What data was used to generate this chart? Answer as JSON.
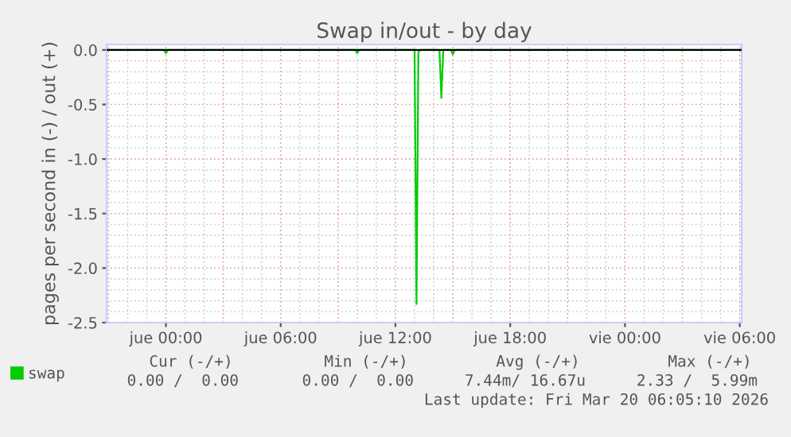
{
  "chart_data": {
    "type": "line",
    "title": "Swap in/out - by day",
    "ylabel": "pages per second in (-) / out (+)",
    "x": [
      "2026-03-18T20:54",
      "2026-03-18T23:54",
      "2026-03-19T00:00",
      "2026-03-19T00:06",
      "2026-03-19T09:54",
      "2026-03-19T10:00",
      "2026-03-19T10:06",
      "2026-03-19T13:00",
      "2026-03-19T13:06",
      "2026-03-19T13:12",
      "2026-03-19T13:18",
      "2026-03-19T14:18",
      "2026-03-19T14:24",
      "2026-03-19T14:30",
      "2026-03-19T14:54",
      "2026-03-19T15:00",
      "2026-03-19T15:06",
      "2026-03-20T06:06"
    ],
    "series": [
      {
        "name": "swap",
        "color": "#00cc00",
        "values": [
          0,
          0,
          -0.03,
          0,
          0,
          -0.03,
          0,
          0,
          -2.33,
          -0.02,
          0,
          0,
          -0.44,
          0,
          0,
          -0.04,
          0,
          0
        ]
      }
    ],
    "xlim": [
      "2026-03-18T20:54",
      "2026-03-20T06:06"
    ],
    "xticks": [
      {
        "value": "2026-03-19T00:00",
        "label": "jue 00:00"
      },
      {
        "value": "2026-03-19T06:00",
        "label": "jue 06:00"
      },
      {
        "value": "2026-03-19T12:00",
        "label": "jue 12:00"
      },
      {
        "value": "2026-03-19T18:00",
        "label": "jue 18:00"
      },
      {
        "value": "2026-03-20T00:00",
        "label": "vie 00:00"
      },
      {
        "value": "2026-03-20T06:00",
        "label": "vie 06:00"
      }
    ],
    "ylim": [
      -2.5,
      0.05
    ],
    "yticks": [
      {
        "value": -2.5,
        "label": "-2.5"
      },
      {
        "value": -2.0,
        "label": "-2.0"
      },
      {
        "value": -1.5,
        "label": "-1.5"
      },
      {
        "value": -1.0,
        "label": "-1.0"
      },
      {
        "value": -0.5,
        "label": "-0.5"
      },
      {
        "value": 0,
        "label": "0.0"
      }
    ],
    "ref_lines": [
      {
        "axis": "y",
        "value": 0,
        "color": "#000000"
      }
    ],
    "grid": true,
    "legend": "bottom left",
    "marker": "none",
    "line_style": "solid",
    "annotations": [
      "Cur (-/+)",
      "Min (-/+)",
      "Avg (-/+)",
      "Max (-/+)",
      "0.00 /  0.00",
      "0.00 /  0.00",
      "7.44m/ 16.67u",
      "2.33 /  5.99m",
      "Last update: Fri Mar 20 06:05:10 2026"
    ]
  }
}
